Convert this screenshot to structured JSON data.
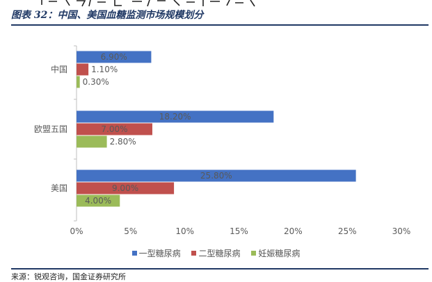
{
  "caption": "图表 32：中国、美国血糖监测市场规模划分",
  "source": "来源：锐观咨询，国金证券研究所",
  "colors": {
    "series1": "#4472c4",
    "series2": "#c0504d",
    "series3": "#9bbb59",
    "axis": "#bfbfbf",
    "label": "#595959"
  },
  "chart_data": {
    "type": "bar",
    "orientation": "horizontal",
    "categories": [
      "中国",
      "欧盟五国",
      "美国"
    ],
    "series": [
      {
        "name": "一型糖尿病",
        "values": [
          6.9,
          18.2,
          25.8
        ],
        "labels": [
          "6.90%",
          "18.20%",
          "25.80%"
        ]
      },
      {
        "name": "二型糖尿病",
        "values": [
          1.1,
          7.0,
          9.0
        ],
        "labels": [
          "1.10%",
          "7.00%",
          "9.00%"
        ]
      },
      {
        "name": "妊娠糖尿病",
        "values": [
          0.3,
          2.8,
          4.0
        ],
        "labels": [
          "0.30%",
          "2.80%",
          "4.00%"
        ]
      }
    ],
    "xlim": [
      0,
      30
    ],
    "xticks": [
      "0%",
      "5%",
      "10%",
      "15%",
      "20%",
      "25%",
      "30%"
    ],
    "grid": false,
    "legend_position": "bottom"
  }
}
